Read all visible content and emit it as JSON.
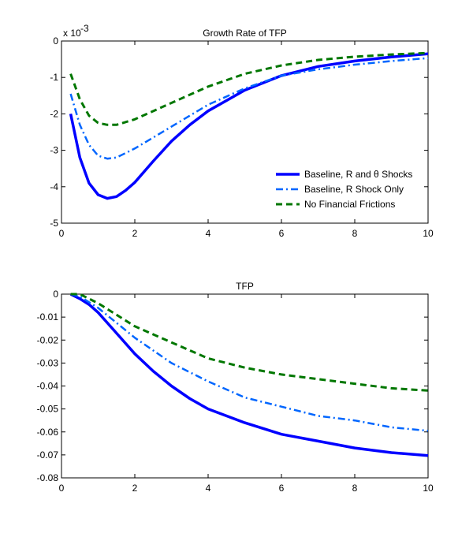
{
  "chart_data": [
    {
      "type": "line",
      "title": "Growth Rate of TFP",
      "y_multiplier_label": "x 10",
      "y_multiplier_exponent": "-3",
      "xlim": [
        0,
        10
      ],
      "ylim": [
        -5,
        0
      ],
      "xticks": [
        "0",
        "2",
        "4",
        "6",
        "8",
        "10"
      ],
      "yticks": [
        "0",
        "-1",
        "-2",
        "-3",
        "-4",
        "-5"
      ],
      "legend_position": "bottom-right",
      "grid": false,
      "series": [
        {
          "name": "Baseline, R and θ Shocks",
          "color": "#0000ff",
          "style": "solid",
          "x": [
            0.25,
            0.5,
            0.75,
            1,
            1.25,
            1.5,
            1.75,
            2,
            2.5,
            3,
            3.5,
            4,
            5,
            6,
            7,
            8,
            9,
            10
          ],
          "y": [
            -2.0,
            -3.2,
            -3.9,
            -4.22,
            -4.32,
            -4.27,
            -4.1,
            -3.88,
            -3.3,
            -2.75,
            -2.3,
            -1.92,
            -1.35,
            -0.95,
            -0.7,
            -0.55,
            -0.44,
            -0.35
          ]
        },
        {
          "name": "Baseline, R Shock Only",
          "color": "#0066ff",
          "style": "dashdot",
          "x": [
            0.25,
            0.5,
            0.75,
            1,
            1.25,
            1.5,
            2,
            3,
            4,
            5,
            6,
            7,
            8,
            9,
            10
          ],
          "y": [
            -1.45,
            -2.3,
            -2.85,
            -3.15,
            -3.23,
            -3.2,
            -2.95,
            -2.35,
            -1.75,
            -1.3,
            -0.95,
            -0.78,
            -0.65,
            -0.55,
            -0.47
          ]
        },
        {
          "name": "No Financial Frictions",
          "color": "#007700",
          "style": "dashed",
          "x": [
            0.25,
            0.5,
            0.75,
            1,
            1.25,
            1.5,
            2,
            3,
            4,
            5,
            6,
            7,
            8,
            9,
            10
          ],
          "y": [
            -0.9,
            -1.6,
            -2.05,
            -2.25,
            -2.3,
            -2.3,
            -2.15,
            -1.7,
            -1.25,
            -0.9,
            -0.67,
            -0.52,
            -0.43,
            -0.37,
            -0.33
          ]
        }
      ]
    },
    {
      "type": "line",
      "title": "TFP",
      "xlim": [
        0,
        10
      ],
      "ylim": [
        -0.08,
        0
      ],
      "xticks": [
        "0",
        "2",
        "4",
        "6",
        "8",
        "10"
      ],
      "yticks": [
        "0",
        "-0.01",
        "-0.02",
        "-0.03",
        "-0.04",
        "-0.05",
        "-0.06",
        "-0.07",
        "-0.08"
      ],
      "grid": false,
      "series": [
        {
          "color": "#0000ff",
          "style": "solid",
          "x": [
            0.25,
            0.5,
            0.75,
            1,
            1.5,
            2,
            2.5,
            3,
            3.5,
            4,
            5,
            6,
            7,
            8,
            9,
            10
          ],
          "y": [
            0,
            -0.002,
            -0.0045,
            -0.008,
            -0.017,
            -0.026,
            -0.0335,
            -0.04,
            -0.0455,
            -0.05,
            -0.056,
            -0.061,
            -0.064,
            -0.067,
            -0.069,
            -0.0703
          ]
        },
        {
          "color": "#0066ff",
          "style": "dashdot",
          "x": [
            0.25,
            0.5,
            1,
            1.5,
            2,
            3,
            4,
            5,
            6,
            7,
            8,
            9,
            10
          ],
          "y": [
            0,
            -0.001,
            -0.006,
            -0.0125,
            -0.019,
            -0.03,
            -0.038,
            -0.045,
            -0.049,
            -0.053,
            -0.055,
            -0.058,
            -0.0595
          ]
        },
        {
          "color": "#007700",
          "style": "dashed",
          "x": [
            0.25,
            0.5,
            1,
            1.5,
            2,
            3,
            4,
            5,
            6,
            7,
            8,
            9,
            10
          ],
          "y": [
            0,
            0,
            -0.004,
            -0.009,
            -0.014,
            -0.021,
            -0.028,
            -0.032,
            -0.035,
            -0.037,
            -0.039,
            -0.041,
            -0.042
          ]
        }
      ]
    }
  ]
}
